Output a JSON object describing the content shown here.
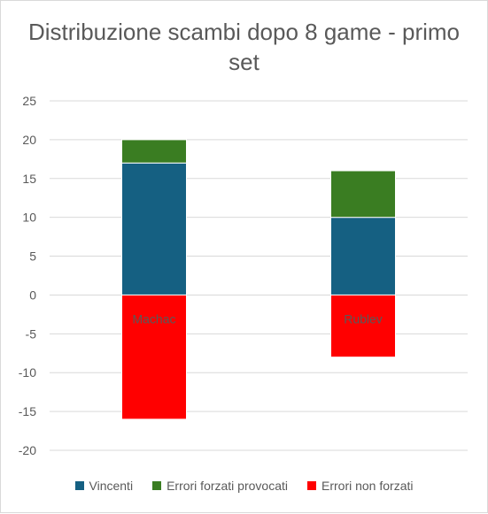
{
  "chart_data": {
    "type": "bar",
    "stacked": true,
    "title": "Distribuzione scambi dopo 8 game - primo set",
    "categories": [
      "Machac",
      "Rublev"
    ],
    "series": [
      {
        "name": "Vincenti",
        "color": "#156082",
        "values": [
          17,
          10
        ]
      },
      {
        "name": "Errori forzati provocati",
        "color": "#3a7d22",
        "values": [
          3,
          6
        ]
      },
      {
        "name": "Errori non forzati",
        "color": "#ff0000",
        "values": [
          -16,
          -8
        ]
      }
    ],
    "ylim": [
      -20,
      25
    ],
    "yticks": [
      25,
      20,
      15,
      10,
      5,
      0,
      -5,
      -10,
      -15,
      -20
    ],
    "grid": true,
    "legend_position": "bottom",
    "xlabel": "",
    "ylabel": ""
  }
}
